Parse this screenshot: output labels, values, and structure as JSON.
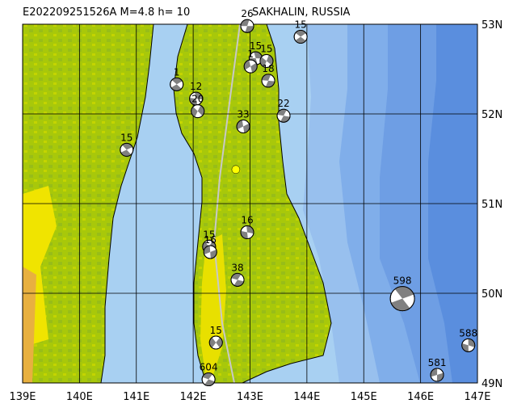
{
  "header": {
    "title": "E202209251526A  M=4.8  h= 10",
    "region": "SAKHALIN, RUSSIA"
  },
  "map": {
    "lon_range": [
      139,
      147
    ],
    "lat_range": [
      49,
      53
    ],
    "lon_ticks": [
      {
        "value": 139,
        "label": "139E"
      },
      {
        "value": 140,
        "label": "140E"
      },
      {
        "value": 141,
        "label": "141E"
      },
      {
        "value": 142,
        "label": "142E"
      },
      {
        "value": 143,
        "label": "143E"
      },
      {
        "value": 144,
        "label": "144E"
      },
      {
        "value": 145,
        "label": "145E"
      },
      {
        "value": 146,
        "label": "146E"
      },
      {
        "value": 147,
        "label": "147E"
      }
    ],
    "lat_ticks": [
      {
        "value": 53,
        "label": "53N"
      },
      {
        "value": 52,
        "label": "52N"
      },
      {
        "value": 51,
        "label": "51N"
      },
      {
        "value": 50,
        "label": "50N"
      },
      {
        "value": 49,
        "label": "49N"
      }
    ],
    "epicenter": {
      "lon": 142.75,
      "lat": 51.38
    },
    "events": [
      {
        "lon": 142.95,
        "lat": 52.98,
        "depth": "26"
      },
      {
        "lon": 143.89,
        "lat": 52.86,
        "depth": "15"
      },
      {
        "lon": 143.1,
        "lat": 52.62,
        "depth": "15"
      },
      {
        "lon": 143.29,
        "lat": 52.59,
        "depth": "15"
      },
      {
        "lon": 143.01,
        "lat": 52.53,
        "depth": "1"
      },
      {
        "lon": 143.32,
        "lat": 52.37,
        "depth": "18"
      },
      {
        "lon": 141.71,
        "lat": 52.33,
        "depth": "1"
      },
      {
        "lon": 142.05,
        "lat": 52.17,
        "depth": "12"
      },
      {
        "lon": 142.08,
        "lat": 52.03,
        "depth": "20"
      },
      {
        "lon": 142.88,
        "lat": 51.86,
        "depth": "33"
      },
      {
        "lon": 143.59,
        "lat": 51.98,
        "depth": "22"
      },
      {
        "lon": 140.83,
        "lat": 51.6,
        "depth": "15"
      },
      {
        "lon": 142.95,
        "lat": 50.68,
        "depth": "16"
      },
      {
        "lon": 142.28,
        "lat": 50.52,
        "depth": "15"
      },
      {
        "lon": 142.3,
        "lat": 50.46,
        "depth": "16"
      },
      {
        "lon": 142.78,
        "lat": 50.15,
        "depth": "38"
      },
      {
        "lon": 145.68,
        "lat": 49.94,
        "depth": "598",
        "big": true
      },
      {
        "lon": 146.84,
        "lat": 49.42,
        "depth": "588"
      },
      {
        "lon": 142.4,
        "lat": 49.45,
        "depth": "15"
      },
      {
        "lon": 146.29,
        "lat": 49.09,
        "depth": "581"
      },
      {
        "lon": 142.27,
        "lat": 49.04,
        "depth": "604"
      }
    ]
  }
}
